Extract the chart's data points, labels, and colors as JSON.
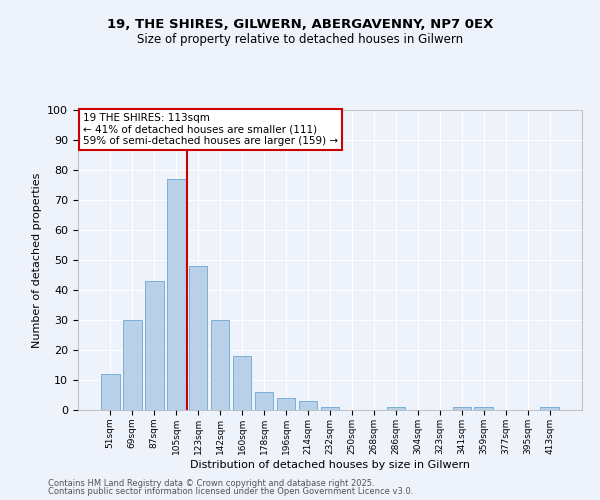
{
  "title1": "19, THE SHIRES, GILWERN, ABERGAVENNY, NP7 0EX",
  "title2": "Size of property relative to detached houses in Gilwern",
  "xlabel": "Distribution of detached houses by size in Gilwern",
  "ylabel": "Number of detached properties",
  "categories": [
    "51sqm",
    "69sqm",
    "87sqm",
    "105sqm",
    "123sqm",
    "142sqm",
    "160sqm",
    "178sqm",
    "196sqm",
    "214sqm",
    "232sqm",
    "250sqm",
    "268sqm",
    "286sqm",
    "304sqm",
    "323sqm",
    "341sqm",
    "359sqm",
    "377sqm",
    "395sqm",
    "413sqm"
  ],
  "values": [
    12,
    30,
    43,
    77,
    48,
    30,
    18,
    6,
    4,
    3,
    1,
    0,
    0,
    1,
    0,
    0,
    1,
    1,
    0,
    0,
    1
  ],
  "bar_color": "#b8d0e8",
  "bar_edge_color": "#7aafd4",
  "vline_x_idx": 3.5,
  "vline_color": "#cc0000",
  "annotation_text": "19 THE SHIRES: 113sqm\n← 41% of detached houses are smaller (111)\n59% of semi-detached houses are larger (159) →",
  "annotation_box_color": "#ffffff",
  "annotation_box_edge": "#cc0000",
  "ylim": [
    0,
    100
  ],
  "yticks": [
    0,
    10,
    20,
    30,
    40,
    50,
    60,
    70,
    80,
    90,
    100
  ],
  "footnote1": "Contains HM Land Registry data © Crown copyright and database right 2025.",
  "footnote2": "Contains public sector information licensed under the Open Government Licence v3.0.",
  "bg_color": "#eef2fb",
  "grid_color": "#ffffff",
  "fig_width": 6.0,
  "fig_height": 5.0
}
